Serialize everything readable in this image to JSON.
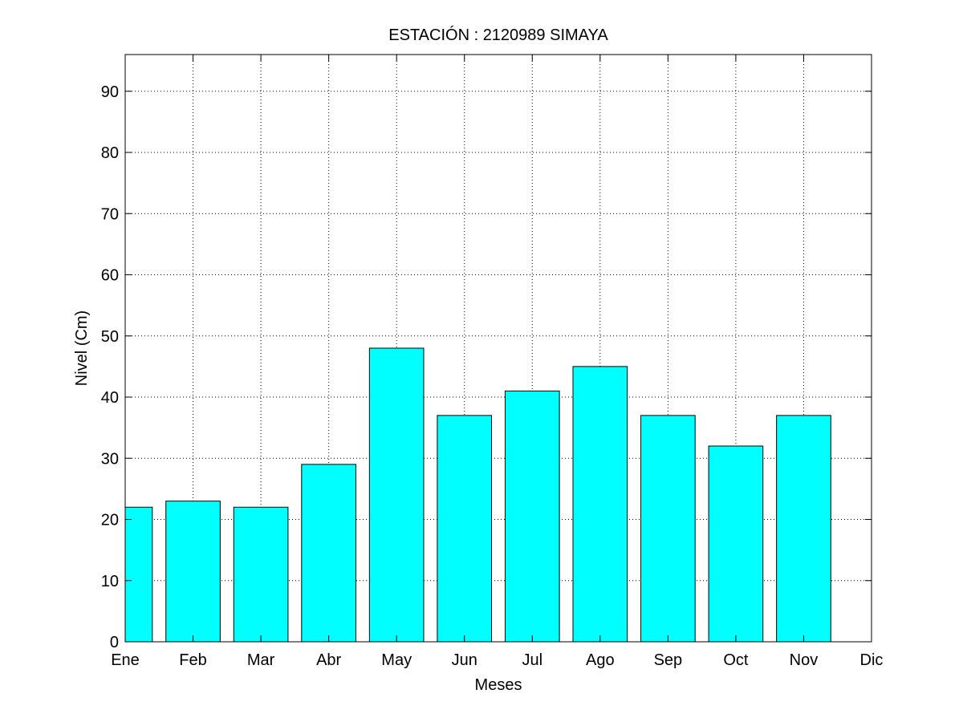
{
  "chart_data": {
    "type": "bar",
    "title": "ESTACIÓN :  2120989  SIMAYA",
    "xlabel": "Meses",
    "ylabel": "Nivel (Cm)",
    "categories": [
      "Ene",
      "Feb",
      "Mar",
      "Abr",
      "May",
      "Jun",
      "Jul",
      "Ago",
      "Sep",
      "Oct",
      "Nov",
      "Dic"
    ],
    "values": [
      22,
      23,
      22,
      29,
      48,
      37,
      41,
      45,
      37,
      32,
      37,
      null
    ],
    "ylim": [
      0,
      96
    ],
    "xlim": [
      1,
      12
    ],
    "yticks": [
      0,
      10,
      20,
      30,
      40,
      50,
      60,
      70,
      80,
      90
    ],
    "grid": true,
    "bar_color": "#00FFFF"
  }
}
